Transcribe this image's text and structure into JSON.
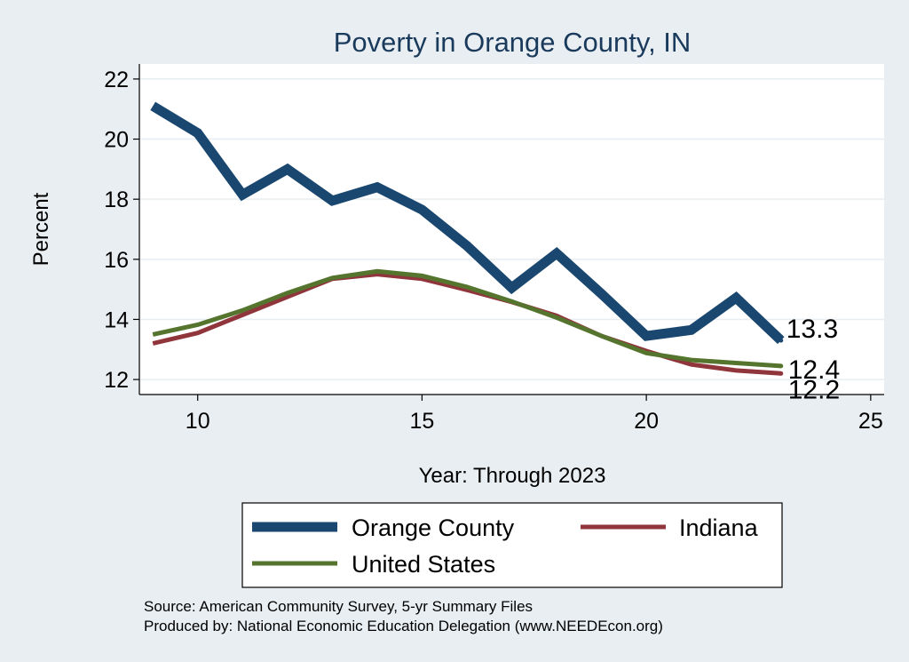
{
  "chart_data": {
    "type": "line",
    "title": "Poverty in Orange County, IN",
    "xlabel": "Year: Through 2023",
    "ylabel": "Percent",
    "xlim": [
      8.7,
      25.3
    ],
    "ylim": [
      11.5,
      22.5
    ],
    "xticks": [
      10,
      15,
      20,
      25
    ],
    "yticks": [
      12,
      14,
      16,
      18,
      20,
      22
    ],
    "grid": true,
    "legend_position": "bottom",
    "x": [
      9,
      10,
      11,
      12,
      13,
      14,
      15,
      16,
      17,
      18,
      19,
      20,
      21,
      22,
      23
    ],
    "series": [
      {
        "name": "Orange County",
        "color": "#1a476f",
        "values": [
          21.1,
          20.2,
          18.15,
          19.0,
          17.95,
          18.4,
          17.65,
          16.45,
          15.05,
          16.2,
          14.85,
          13.45,
          13.65,
          14.72,
          13.3
        ],
        "end_label": "13.3"
      },
      {
        "name": "Indiana",
        "color": "#90353b",
        "values": [
          13.2,
          13.55,
          14.15,
          14.75,
          15.35,
          15.5,
          15.35,
          14.98,
          14.58,
          14.12,
          13.45,
          12.95,
          12.5,
          12.3,
          12.2
        ],
        "end_label": "12.2"
      },
      {
        "name": "United States",
        "color": "#55752f",
        "values": [
          13.5,
          13.82,
          14.3,
          14.88,
          15.38,
          15.6,
          15.45,
          15.08,
          14.6,
          14.06,
          13.45,
          12.88,
          12.65,
          12.55,
          12.45
        ],
        "end_label": "12.4"
      }
    ]
  },
  "footer": {
    "source_line": "Source: American Community Survey, 5-yr Summary Files",
    "produced_line": "Produced by: National Economic Education Delegation (www.NEEDEcon.org)"
  }
}
